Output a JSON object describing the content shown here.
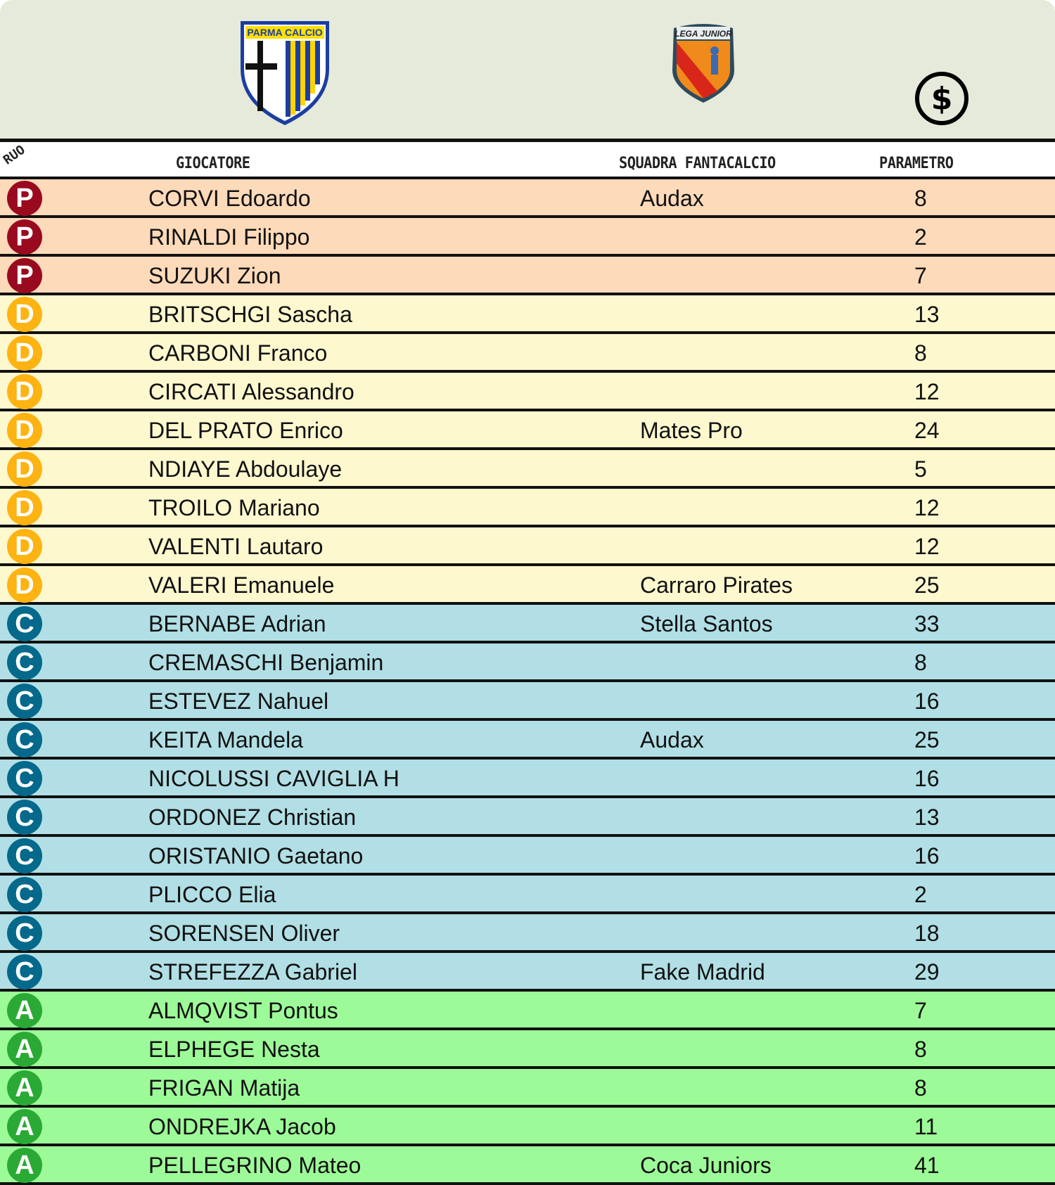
{
  "logos": {
    "club": "PARMA CALCIO",
    "league": "LEGA JUNIOR",
    "money_icon": "dollar-circle-icon"
  },
  "header": {
    "role": "RUO",
    "player": "GIOCATORE",
    "team": "SQUADRA FANTACALCIO",
    "price": "PARAMETRO"
  },
  "role_colors": {
    "P": {
      "badge": "#9a0a1e",
      "row": "#fddab9"
    },
    "D": {
      "badge": "#fdb312",
      "row": "#fef8cf"
    },
    "C": {
      "badge": "#05698b",
      "row": "#b1dfe5"
    },
    "A": {
      "badge": "#2aaa35",
      "row": "#9dfa98"
    }
  },
  "players": [
    {
      "role": "P",
      "name": "CORVI Edoardo",
      "team": "Audax",
      "price": "8"
    },
    {
      "role": "P",
      "name": "RINALDI Filippo",
      "team": "",
      "price": "2"
    },
    {
      "role": "P",
      "name": "SUZUKI Zion",
      "team": "",
      "price": "7"
    },
    {
      "role": "D",
      "name": "BRITSCHGI Sascha",
      "team": "",
      "price": "13"
    },
    {
      "role": "D",
      "name": "CARBONI Franco",
      "team": "",
      "price": "8"
    },
    {
      "role": "D",
      "name": "CIRCATI Alessandro",
      "team": "",
      "price": "12"
    },
    {
      "role": "D",
      "name": "DEL PRATO Enrico",
      "team": "Mates Pro",
      "price": "24"
    },
    {
      "role": "D",
      "name": "NDIAYE Abdoulaye",
      "team": "",
      "price": "5"
    },
    {
      "role": "D",
      "name": "TROILO Mariano",
      "team": "",
      "price": "12"
    },
    {
      "role": "D",
      "name": "VALENTI Lautaro",
      "team": "",
      "price": "12"
    },
    {
      "role": "D",
      "name": "VALERI Emanuele",
      "team": "Carraro Pirates",
      "price": "25"
    },
    {
      "role": "C",
      "name": "BERNABE Adrian",
      "team": "Stella Santos",
      "price": "33"
    },
    {
      "role": "C",
      "name": "CREMASCHI Benjamin",
      "team": "",
      "price": "8"
    },
    {
      "role": "C",
      "name": "ESTEVEZ Nahuel",
      "team": "",
      "price": "16"
    },
    {
      "role": "C",
      "name": "KEITA Mandela",
      "team": "Audax",
      "price": "25"
    },
    {
      "role": "C",
      "name": "NICOLUSSI CAVIGLIA H",
      "team": "",
      "price": "16"
    },
    {
      "role": "C",
      "name": "ORDONEZ Christian",
      "team": "",
      "price": "13"
    },
    {
      "role": "C",
      "name": "ORISTANIO Gaetano",
      "team": "",
      "price": "16"
    },
    {
      "role": "C",
      "name": "PLICCO Elia",
      "team": "",
      "price": "2"
    },
    {
      "role": "C",
      "name": "SORENSEN Oliver",
      "team": "",
      "price": "18"
    },
    {
      "role": "C",
      "name": "STREFEZZA Gabriel",
      "team": "Fake Madrid",
      "price": "29"
    },
    {
      "role": "A",
      "name": "ALMQVIST Pontus",
      "team": "",
      "price": "7"
    },
    {
      "role": "A",
      "name": "ELPHEGE Nesta",
      "team": "",
      "price": "8"
    },
    {
      "role": "A",
      "name": "FRIGAN Matija",
      "team": "",
      "price": "8"
    },
    {
      "role": "A",
      "name": "ONDREJKA Jacob",
      "team": "",
      "price": "11"
    },
    {
      "role": "A",
      "name": "PELLEGRINO Mateo",
      "team": "Coca Juniors",
      "price": "41"
    }
  ]
}
